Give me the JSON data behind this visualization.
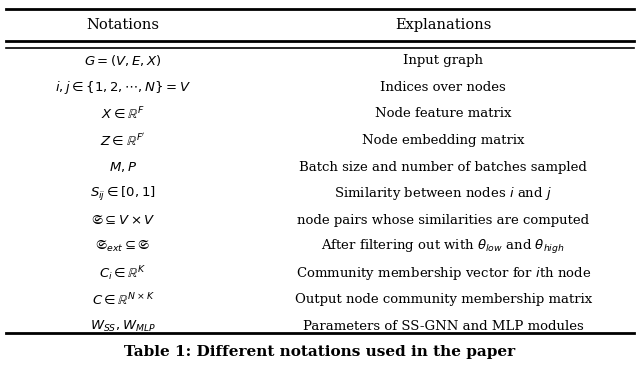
{
  "title": "Table 1: Different notations used in the paper",
  "col_headers": [
    "Notations",
    "Explanations"
  ],
  "rows": [
    [
      "$G = (V, E, X)$",
      "Input graph"
    ],
    [
      "$i, j \\in \\{1, 2, \\cdots, N\\} = V$",
      "Indices over nodes"
    ],
    [
      "$X \\in \\mathbb{R}^{F}$",
      "Node feature matrix"
    ],
    [
      "$Z \\in \\mathbb{R}^{F^{\\prime}}$",
      "Node embedding matrix"
    ],
    [
      "$M, P$",
      "Batch size and number of batches sampled"
    ],
    [
      "$S_{ij} \\in [0, 1]$",
      "Similarity between nodes $i$ and $j$"
    ],
    [
      "$\\mathfrak{S} \\subseteq V \\times V$",
      "node pairs whose similarities are computed"
    ],
    [
      "$\\mathfrak{S}_{ext} \\subseteq \\mathfrak{S}$",
      "After filtering out with $\\theta_{low}$ and $\\theta_{high}$"
    ],
    [
      "$C_i \\in \\mathbb{R}^{K}$",
      "Community membership vector for $i$th node"
    ],
    [
      "$C \\in \\mathbb{R}^{N \\times K}$",
      "Output node community membership matrix"
    ],
    [
      "$W_{SS}, W_{MLP}$",
      "Parameters of SS-GNN and MLP modules"
    ]
  ],
  "bg_color": "#ffffff",
  "text_color": "black",
  "header_fontsize": 10.5,
  "cell_fontsize": 9.5,
  "title_fontsize": 11,
  "col_split": 0.385,
  "figsize": [
    6.4,
    3.72
  ],
  "dpi": 100
}
